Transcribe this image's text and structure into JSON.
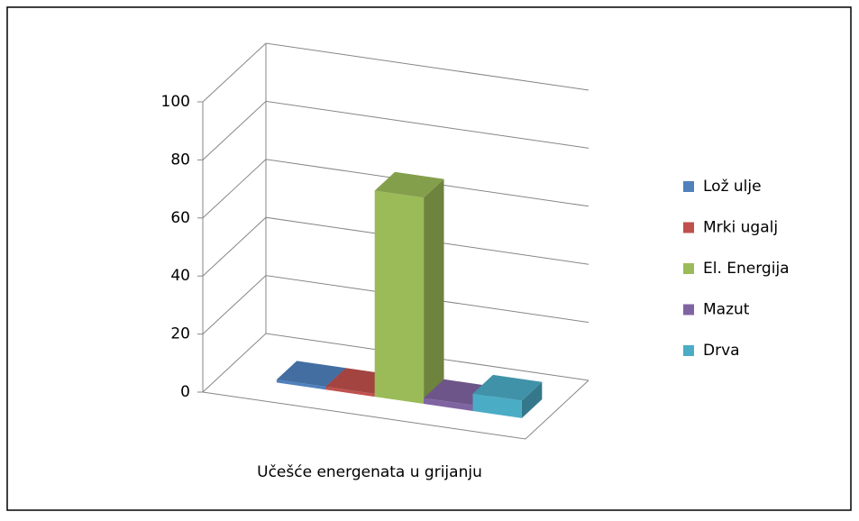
{
  "chart_data": {
    "type": "bar3d",
    "categories": [
      "Učešće energenata u grijanju"
    ],
    "series": [
      {
        "name": "Lož ulje",
        "color": "#4f81bd",
        "values": [
          1
        ]
      },
      {
        "name": "Mrki ugalj",
        "color": "#c0504d",
        "values": [
          1
        ]
      },
      {
        "name": "El. Energija",
        "color": "#9bbb59",
        "values": [
          71
        ]
      },
      {
        "name": "Mazut",
        "color": "#8064a2",
        "values": [
          2
        ]
      },
      {
        "name": "Drva",
        "color": "#4bacc6",
        "values": [
          6
        ]
      }
    ],
    "ylim": [
      0,
      100
    ],
    "yticks": [
      0,
      20,
      40,
      60,
      80,
      100
    ],
    "grid": true,
    "legend": "right"
  }
}
